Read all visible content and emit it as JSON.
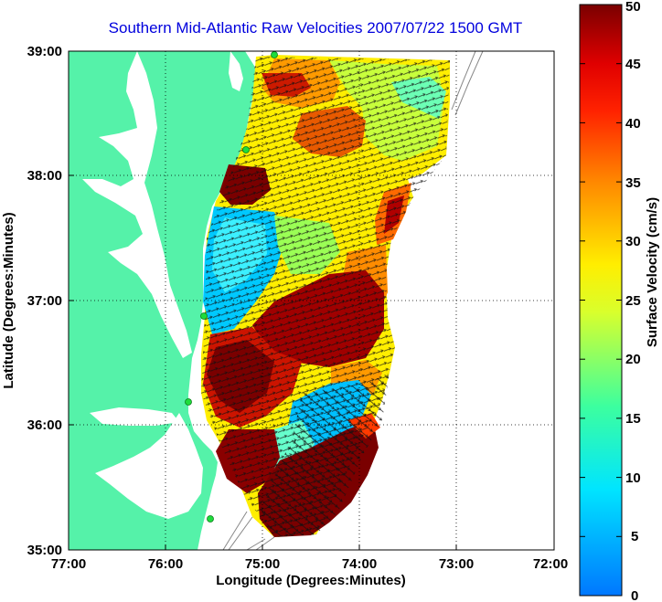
{
  "map": {
    "title": "Southern Mid-Atlantic Raw Velocities 2007/07/22 1500 GMT",
    "xlabel": "Longitude (Degrees:Minutes)",
    "ylabel": "Latitude (Degrees:Minutes)",
    "x_ticks": [
      "77:00",
      "76:00",
      "75:00",
      "74:00",
      "73:00",
      "72:00"
    ],
    "y_ticks": [
      "39:00",
      "38:00",
      "37:00",
      "36:00",
      "35:00"
    ],
    "grid": "dotted",
    "land_color": "#55f2a9",
    "water_color": "#ffffff",
    "station_color": "#1edc3c"
  },
  "colorbar": {
    "label": "Surface Velocity (cm/s)",
    "ticks": [
      "50",
      "45",
      "40",
      "35",
      "30",
      "25",
      "20",
      "15",
      "10",
      "5",
      "0"
    ],
    "range": [
      0,
      50
    ],
    "units": "cm/s"
  }
}
